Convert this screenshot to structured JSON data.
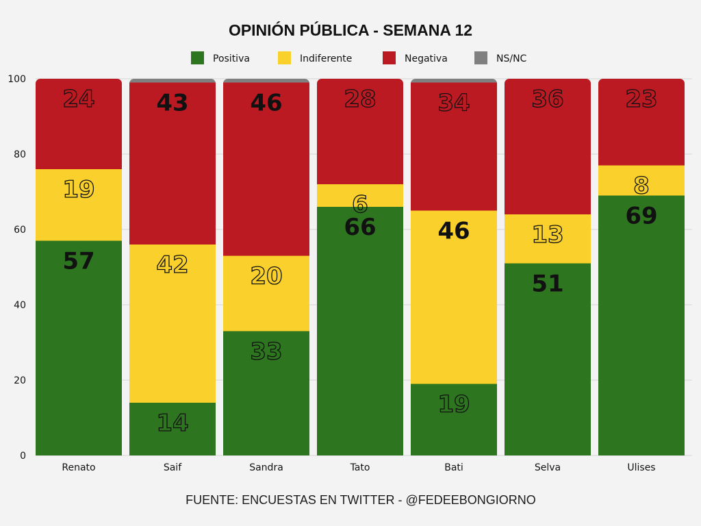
{
  "chart_data": {
    "type": "bar",
    "stacked": true,
    "title": "OPINIÓN PÚBLICA - SEMANA 12",
    "categories": [
      "Renato",
      "Saif",
      "Sandra",
      "Tato",
      "Bati",
      "Selva",
      "Ulises"
    ],
    "series": [
      {
        "name": "Positiva",
        "color": "#2e7520",
        "values": [
          57,
          14,
          33,
          66,
          19,
          51,
          69
        ]
      },
      {
        "name": "Indiferente",
        "color": "#f9d02c",
        "values": [
          19,
          42,
          20,
          6,
          46,
          13,
          8
        ]
      },
      {
        "name": "Negativa",
        "color": "#bb1a23",
        "values": [
          24,
          43,
          46,
          28,
          34,
          36,
          23
        ]
      },
      {
        "name": "NS/NC",
        "color": "#808080",
        "values": [
          0,
          1,
          1,
          0,
          1,
          0,
          0
        ]
      }
    ],
    "label_styles": [
      [
        "solid",
        "outline",
        "outline",
        "solid",
        "outline",
        "solid",
        "solid"
      ],
      [
        "outline",
        "outline",
        "outline",
        "outline",
        "solid",
        "outline",
        "outline"
      ],
      [
        "outline",
        "solid",
        "solid",
        "outline",
        "outline",
        "outline",
        "outline"
      ]
    ],
    "ylim": [
      0,
      100
    ],
    "yticks": [
      0,
      20,
      40,
      60,
      80,
      100
    ],
    "xlabel": "",
    "ylabel": "",
    "legend_position": "top-center",
    "grid": true
  },
  "footer": {
    "source": "FUENTE: ENCUESTAS EN TWITTER - @FEDEEBONGIORNO"
  }
}
